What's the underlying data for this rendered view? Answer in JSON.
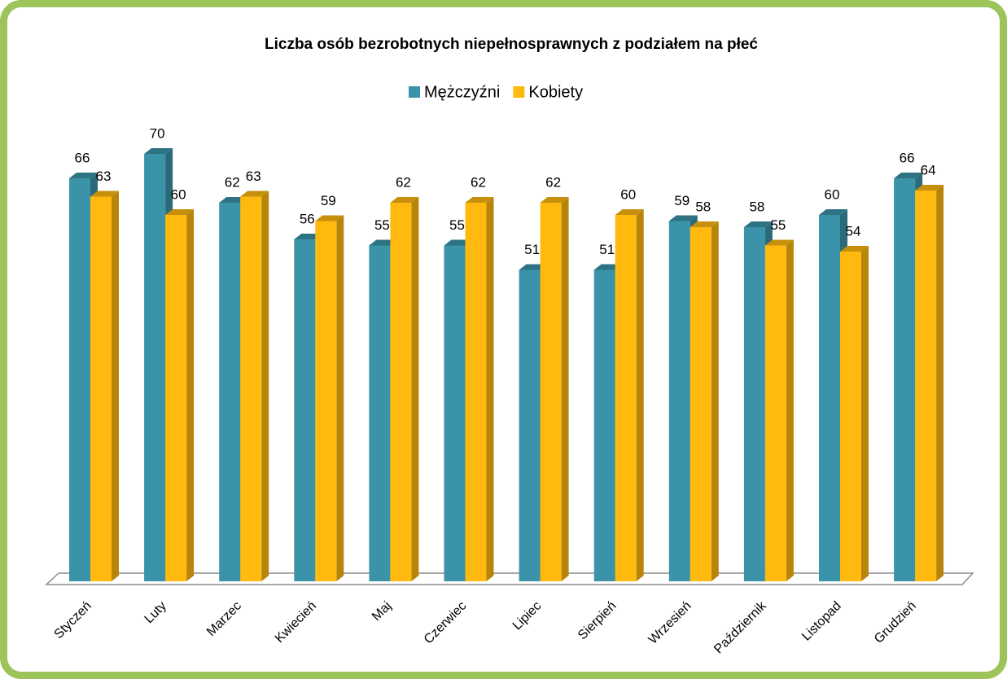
{
  "chart_data": {
    "type": "bar3d",
    "title": "Liczba osób bezrobotnych niepełnosprawnych z podziałem na płeć",
    "categories": [
      "Styczeń",
      "Luty",
      "Marzec",
      "Kwiecień",
      "Maj",
      "Czerwiec",
      "Lipiec",
      "Sierpień",
      "Wrzesień",
      "Październik",
      "Listopad",
      "Grudzień"
    ],
    "series": [
      {
        "name": "Mężczyźni",
        "color": "#3a93a8",
        "values": [
          66,
          70,
          62,
          56,
          55,
          55,
          51,
          51,
          59,
          58,
          60,
          66
        ]
      },
      {
        "name": "Kobiety",
        "color": "#ffb90f",
        "values": [
          63,
          60,
          63,
          59,
          62,
          62,
          62,
          60,
          58,
          55,
          54,
          64
        ]
      }
    ],
    "legend": "top"
  }
}
